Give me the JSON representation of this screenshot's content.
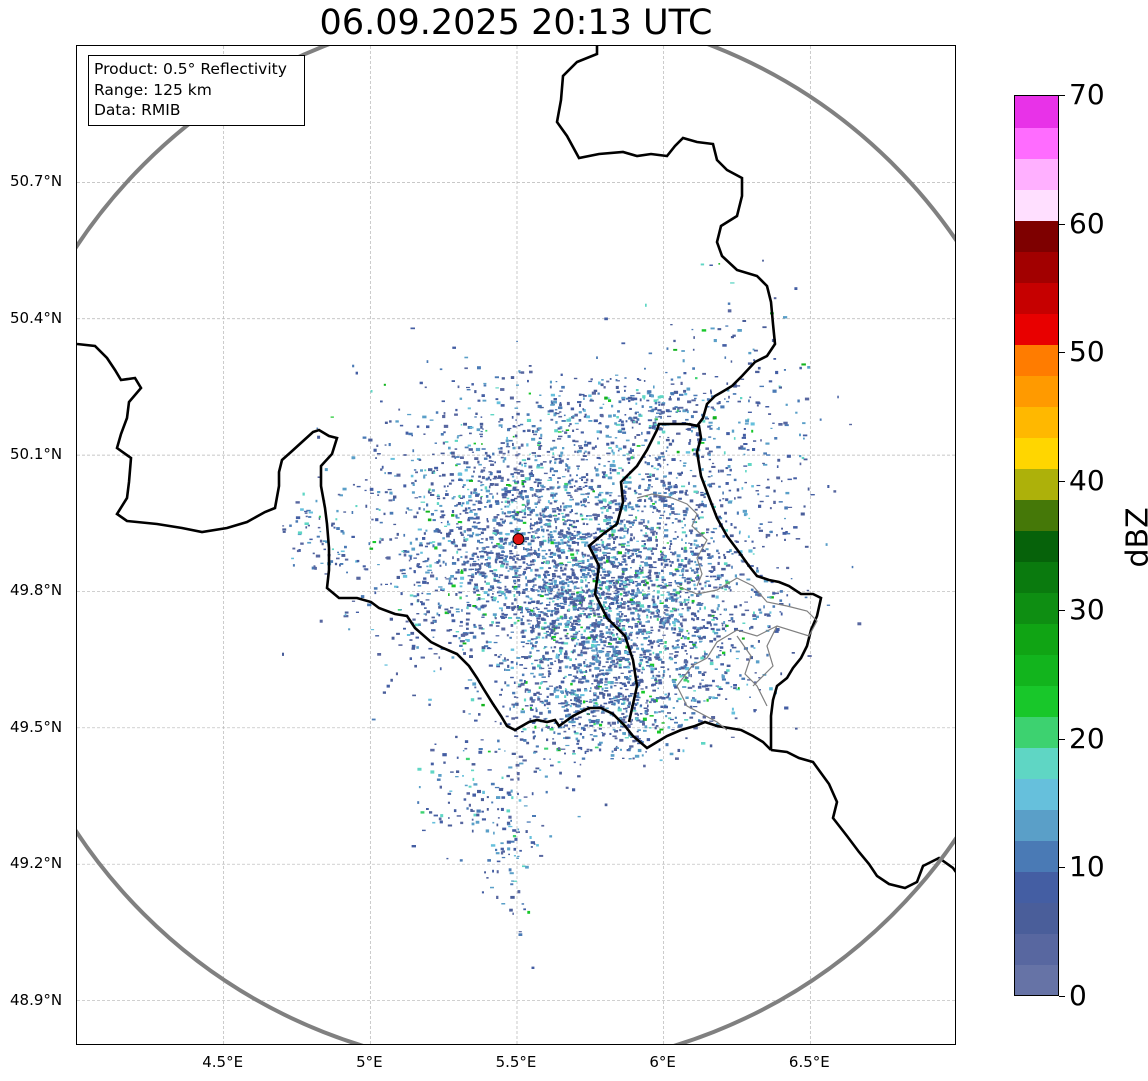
{
  "title": "06.09.2025 20:13 UTC",
  "info": {
    "product": "Product: 0.5° Reflectivity",
    "range": "Range: 125 km",
    "source": "Data: RMIB"
  },
  "map": {
    "lon_range": [
      4.0,
      7.0
    ],
    "lat_range": [
      48.8,
      51.0
    ],
    "lat_ticks": [
      {
        "value": 50.7,
        "label": "50.7°N"
      },
      {
        "value": 50.4,
        "label": "50.4°N"
      },
      {
        "value": 50.1,
        "label": "50.1°N"
      },
      {
        "value": 49.8,
        "label": "49.8°N"
      },
      {
        "value": 49.5,
        "label": "49.5°N"
      },
      {
        "value": 49.2,
        "label": "49.2°N"
      },
      {
        "value": 48.9,
        "label": "48.9°N"
      }
    ],
    "lon_ticks": [
      {
        "value": 4.5,
        "label": "4.5°E"
      },
      {
        "value": 5.0,
        "label": "5°E"
      },
      {
        "value": 5.5,
        "label": "5.5°E"
      },
      {
        "value": 6.0,
        "label": "6°E"
      },
      {
        "value": 6.5,
        "label": "6.5°E"
      }
    ],
    "radar_site": {
      "lon": 5.505,
      "lat": 49.915,
      "color": "#dd1111"
    },
    "range_ring_km": 125,
    "ring_color": "#808080",
    "border_color": "#000000",
    "region_border_color": "#808080"
  },
  "colorbar": {
    "unit": "dBZ",
    "min": 0,
    "max": 70,
    "tick_labels": [
      "0",
      "10",
      "20",
      "30",
      "40",
      "50",
      "60",
      "70"
    ],
    "colors": [
      "#6673a6",
      "#5867a0",
      "#4a5e9a",
      "#445ea3",
      "#4a7ab5",
      "#5a9fc8",
      "#66c0dc",
      "#5fd6c4",
      "#3dd270",
      "#18c72a",
      "#12b41d",
      "#10a414",
      "#0e8e12",
      "#0a7a0e",
      "#06620a",
      "#457808",
      "#adb10a",
      "#ffd600",
      "#ffb800",
      "#ff9a00",
      "#ff7c00",
      "#e80000",
      "#c60000",
      "#a20000",
      "#7e0000",
      "#ffdfff",
      "#ffb0ff",
      "#ff6cff",
      "#e832e8"
    ]
  }
}
